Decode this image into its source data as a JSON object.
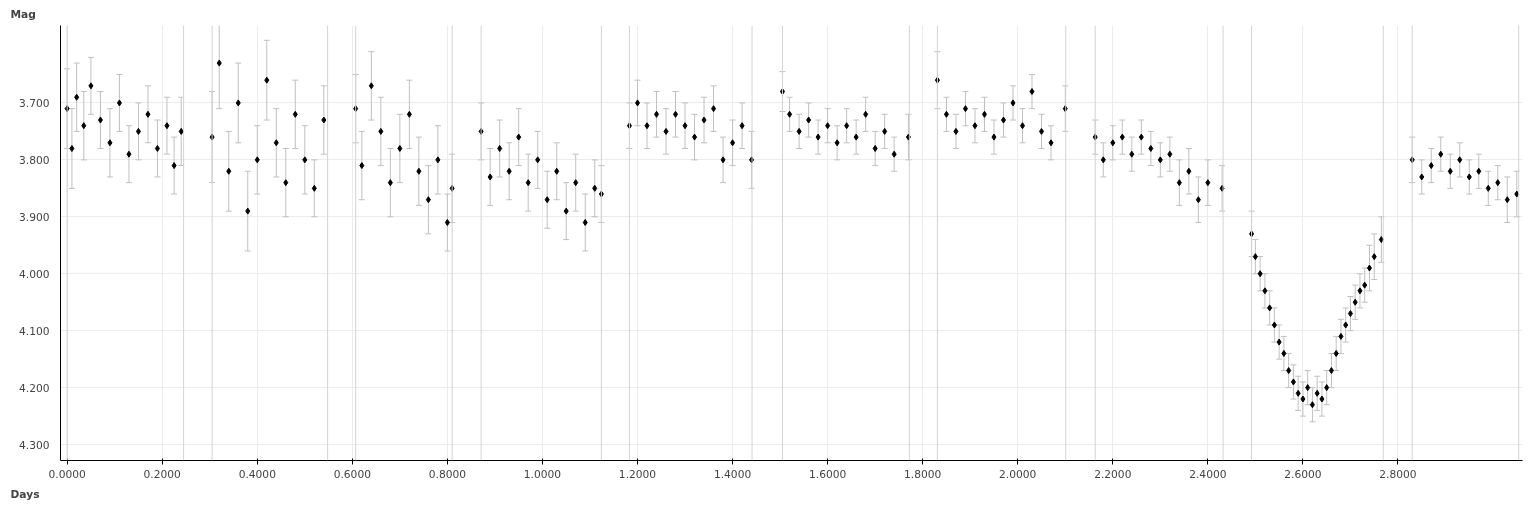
{
  "chart_data": {
    "type": "scatter",
    "xlabel": "Days",
    "ylabel": "Mag",
    "xlim": [
      -0.014,
      3.062
    ],
    "ylim": [
      4.328,
      3.564
    ],
    "xticks": [
      {
        "value": 0,
        "label": "0.0000"
      },
      {
        "value": 0.2,
        "label": "0.2000"
      },
      {
        "value": 0.4,
        "label": "0.4000"
      },
      {
        "value": 0.6,
        "label": "0.6000"
      },
      {
        "value": 0.8,
        "label": "0.8000"
      },
      {
        "value": 1.0,
        "label": "1.0000"
      },
      {
        "value": 1.2,
        "label": "1.2000"
      },
      {
        "value": 1.4,
        "label": "1.4000"
      },
      {
        "value": 1.6,
        "label": "1.6000"
      },
      {
        "value": 1.8,
        "label": "1.8000"
      },
      {
        "value": 2.0,
        "label": "2.0000"
      },
      {
        "value": 2.2,
        "label": "2.2000"
      },
      {
        "value": 2.4,
        "label": "2.4000"
      },
      {
        "value": 2.6,
        "label": "2.6000"
      },
      {
        "value": 2.8,
        "label": "2.8000"
      }
    ],
    "yticks": [
      {
        "value": 3.7,
        "label": "3.700"
      },
      {
        "value": 3.8,
        "label": "3.800"
      },
      {
        "value": 3.9,
        "label": "3.900"
      },
      {
        "value": 4.0,
        "label": "4.000"
      },
      {
        "value": 4.1,
        "label": "4.100"
      },
      {
        "value": 4.2,
        "label": "4.200"
      },
      {
        "value": 4.3,
        "label": "4.300"
      }
    ],
    "grid": true,
    "marker": "diamond",
    "ref_lines": [
      {
        "axis": "x",
        "value": 0.0,
        "color": "#d3d3d3"
      },
      {
        "axis": "x",
        "value": 0.245,
        "color": "#d3d3d3"
      },
      {
        "axis": "x",
        "value": 0.305,
        "color": "#d3d3d3"
      },
      {
        "axis": "x",
        "value": 0.548,
        "color": "#d3d3d3"
      },
      {
        "axis": "x",
        "value": 0.607,
        "color": "#d3d3d3"
      },
      {
        "axis": "x",
        "value": 0.81,
        "color": "#d3d3d3"
      },
      {
        "axis": "x",
        "value": 0.871,
        "color": "#d3d3d3"
      },
      {
        "axis": "x",
        "value": 1.124,
        "color": "#d3d3d3"
      },
      {
        "axis": "x",
        "value": 1.183,
        "color": "#d3d3d3"
      },
      {
        "axis": "x",
        "value": 1.441,
        "color": "#d3d3d3"
      },
      {
        "axis": "x",
        "value": 1.505,
        "color": "#d3d3d3"
      },
      {
        "axis": "x",
        "value": 1.772,
        "color": "#d3d3d3"
      },
      {
        "axis": "x",
        "value": 1.831,
        "color": "#d3d3d3"
      },
      {
        "axis": "x",
        "value": 2.101,
        "color": "#d3d3d3"
      },
      {
        "axis": "x",
        "value": 2.163,
        "color": "#d3d3d3"
      },
      {
        "axis": "x",
        "value": 2.432,
        "color": "#d3d3d3"
      },
      {
        "axis": "x",
        "value": 2.492,
        "color": "#d3d3d3"
      },
      {
        "axis": "x",
        "value": 2.769,
        "color": "#d3d3d3"
      },
      {
        "axis": "x",
        "value": 2.83,
        "color": "#d3d3d3"
      },
      {
        "axis": "x",
        "value": 3.054,
        "color": "#d3d3d3"
      }
    ],
    "series": [
      {
        "color": "#000000",
        "x": [
          0.0,
          0.01,
          0.02,
          0.035,
          0.05,
          0.07,
          0.09,
          0.11,
          0.13,
          0.15,
          0.17,
          0.19,
          0.21,
          0.225,
          0.24,
          0.305,
          0.32,
          0.34,
          0.36,
          0.38,
          0.4,
          0.42,
          0.44,
          0.46,
          0.48,
          0.5,
          0.52,
          0.54,
          0.607,
          0.62,
          0.64,
          0.66,
          0.68,
          0.7,
          0.72,
          0.74,
          0.76,
          0.78,
          0.8,
          0.81,
          0.871,
          0.89,
          0.91,
          0.93,
          0.95,
          0.97,
          0.99,
          1.01,
          1.03,
          1.05,
          1.07,
          1.09,
          1.11,
          1.124,
          1.183,
          1.2,
          1.22,
          1.24,
          1.26,
          1.28,
          1.3,
          1.32,
          1.34,
          1.36,
          1.38,
          1.4,
          1.42,
          1.44,
          1.505,
          1.52,
          1.54,
          1.56,
          1.58,
          1.6,
          1.62,
          1.64,
          1.66,
          1.68,
          1.7,
          1.72,
          1.74,
          1.77,
          1.831,
          1.85,
          1.87,
          1.89,
          1.91,
          1.93,
          1.95,
          1.97,
          1.99,
          2.01,
          2.03,
          2.05,
          2.07,
          2.1,
          2.163,
          2.18,
          2.2,
          2.22,
          2.24,
          2.26,
          2.28,
          2.3,
          2.32,
          2.34,
          2.36,
          2.38,
          2.4,
          2.43,
          2.492,
          2.5,
          2.51,
          2.52,
          2.53,
          2.54,
          2.55,
          2.56,
          2.57,
          2.58,
          2.59,
          2.6,
          2.61,
          2.62,
          2.63,
          2.64,
          2.65,
          2.66,
          2.67,
          2.68,
          2.69,
          2.7,
          2.71,
          2.72,
          2.73,
          2.74,
          2.75,
          2.765,
          2.83,
          2.85,
          2.87,
          2.89,
          2.91,
          2.93,
          2.95,
          2.97,
          2.99,
          3.01,
          3.03,
          3.05
        ],
        "values": [
          3.71,
          3.78,
          3.69,
          3.74,
          3.67,
          3.73,
          3.77,
          3.7,
          3.79,
          3.75,
          3.72,
          3.78,
          3.74,
          3.81,
          3.75,
          3.76,
          3.63,
          3.82,
          3.7,
          3.89,
          3.8,
          3.66,
          3.77,
          3.84,
          3.72,
          3.8,
          3.85,
          3.73,
          3.71,
          3.81,
          3.67,
          3.75,
          3.84,
          3.78,
          3.72,
          3.82,
          3.87,
          3.8,
          3.91,
          3.85,
          3.75,
          3.83,
          3.78,
          3.82,
          3.76,
          3.84,
          3.8,
          3.87,
          3.82,
          3.89,
          3.84,
          3.91,
          3.85,
          3.86,
          3.74,
          3.7,
          3.74,
          3.72,
          3.75,
          3.72,
          3.74,
          3.76,
          3.73,
          3.71,
          3.8,
          3.77,
          3.74,
          3.8,
          3.68,
          3.72,
          3.75,
          3.73,
          3.76,
          3.74,
          3.77,
          3.74,
          3.76,
          3.72,
          3.78,
          3.75,
          3.79,
          3.76,
          3.66,
          3.72,
          3.75,
          3.71,
          3.74,
          3.72,
          3.76,
          3.73,
          3.7,
          3.74,
          3.68,
          3.75,
          3.77,
          3.71,
          3.76,
          3.8,
          3.77,
          3.76,
          3.79,
          3.76,
          3.78,
          3.8,
          3.79,
          3.84,
          3.82,
          3.87,
          3.84,
          3.85,
          3.93,
          3.97,
          4.0,
          4.03,
          4.06,
          4.09,
          4.12,
          4.14,
          4.17,
          4.19,
          4.21,
          4.22,
          4.2,
          4.23,
          4.21,
          4.22,
          4.2,
          4.17,
          4.14,
          4.11,
          4.09,
          4.07,
          4.05,
          4.03,
          4.02,
          3.99,
          3.97,
          3.94,
          3.8,
          3.83,
          3.81,
          3.79,
          3.82,
          3.8,
          3.83,
          3.82,
          3.85,
          3.84,
          3.87,
          3.86
        ],
        "errors": [
          0.07,
          0.07,
          0.06,
          0.06,
          0.05,
          0.05,
          0.06,
          0.05,
          0.05,
          0.05,
          0.05,
          0.05,
          0.05,
          0.05,
          0.06,
          0.08,
          0.08,
          0.07,
          0.07,
          0.07,
          0.06,
          0.07,
          0.06,
          0.06,
          0.06,
          0.06,
          0.05,
          0.06,
          0.06,
          0.06,
          0.06,
          0.06,
          0.06,
          0.06,
          0.06,
          0.06,
          0.06,
          0.06,
          0.05,
          0.06,
          0.05,
          0.05,
          0.05,
          0.05,
          0.05,
          0.05,
          0.05,
          0.05,
          0.05,
          0.05,
          0.05,
          0.05,
          0.05,
          0.05,
          0.04,
          0.04,
          0.04,
          0.04,
          0.04,
          0.04,
          0.04,
          0.04,
          0.04,
          0.04,
          0.04,
          0.04,
          0.04,
          0.05,
          0.035,
          0.03,
          0.03,
          0.03,
          0.03,
          0.03,
          0.03,
          0.03,
          0.03,
          0.03,
          0.03,
          0.03,
          0.03,
          0.04,
          0.05,
          0.03,
          0.03,
          0.03,
          0.03,
          0.03,
          0.03,
          0.03,
          0.03,
          0.03,
          0.03,
          0.03,
          0.03,
          0.04,
          0.03,
          0.03,
          0.03,
          0.03,
          0.03,
          0.03,
          0.03,
          0.03,
          0.03,
          0.04,
          0.04,
          0.04,
          0.04,
          0.04,
          0.04,
          0.03,
          0.03,
          0.03,
          0.03,
          0.03,
          0.03,
          0.03,
          0.03,
          0.03,
          0.03,
          0.03,
          0.03,
          0.03,
          0.03,
          0.03,
          0.03,
          0.03,
          0.03,
          0.03,
          0.03,
          0.03,
          0.03,
          0.03,
          0.03,
          0.04,
          0.04,
          0.04,
          0.04,
          0.03,
          0.03,
          0.03,
          0.03,
          0.03,
          0.03,
          0.03,
          0.03,
          0.03,
          0.04,
          0.04
        ]
      }
    ]
  }
}
